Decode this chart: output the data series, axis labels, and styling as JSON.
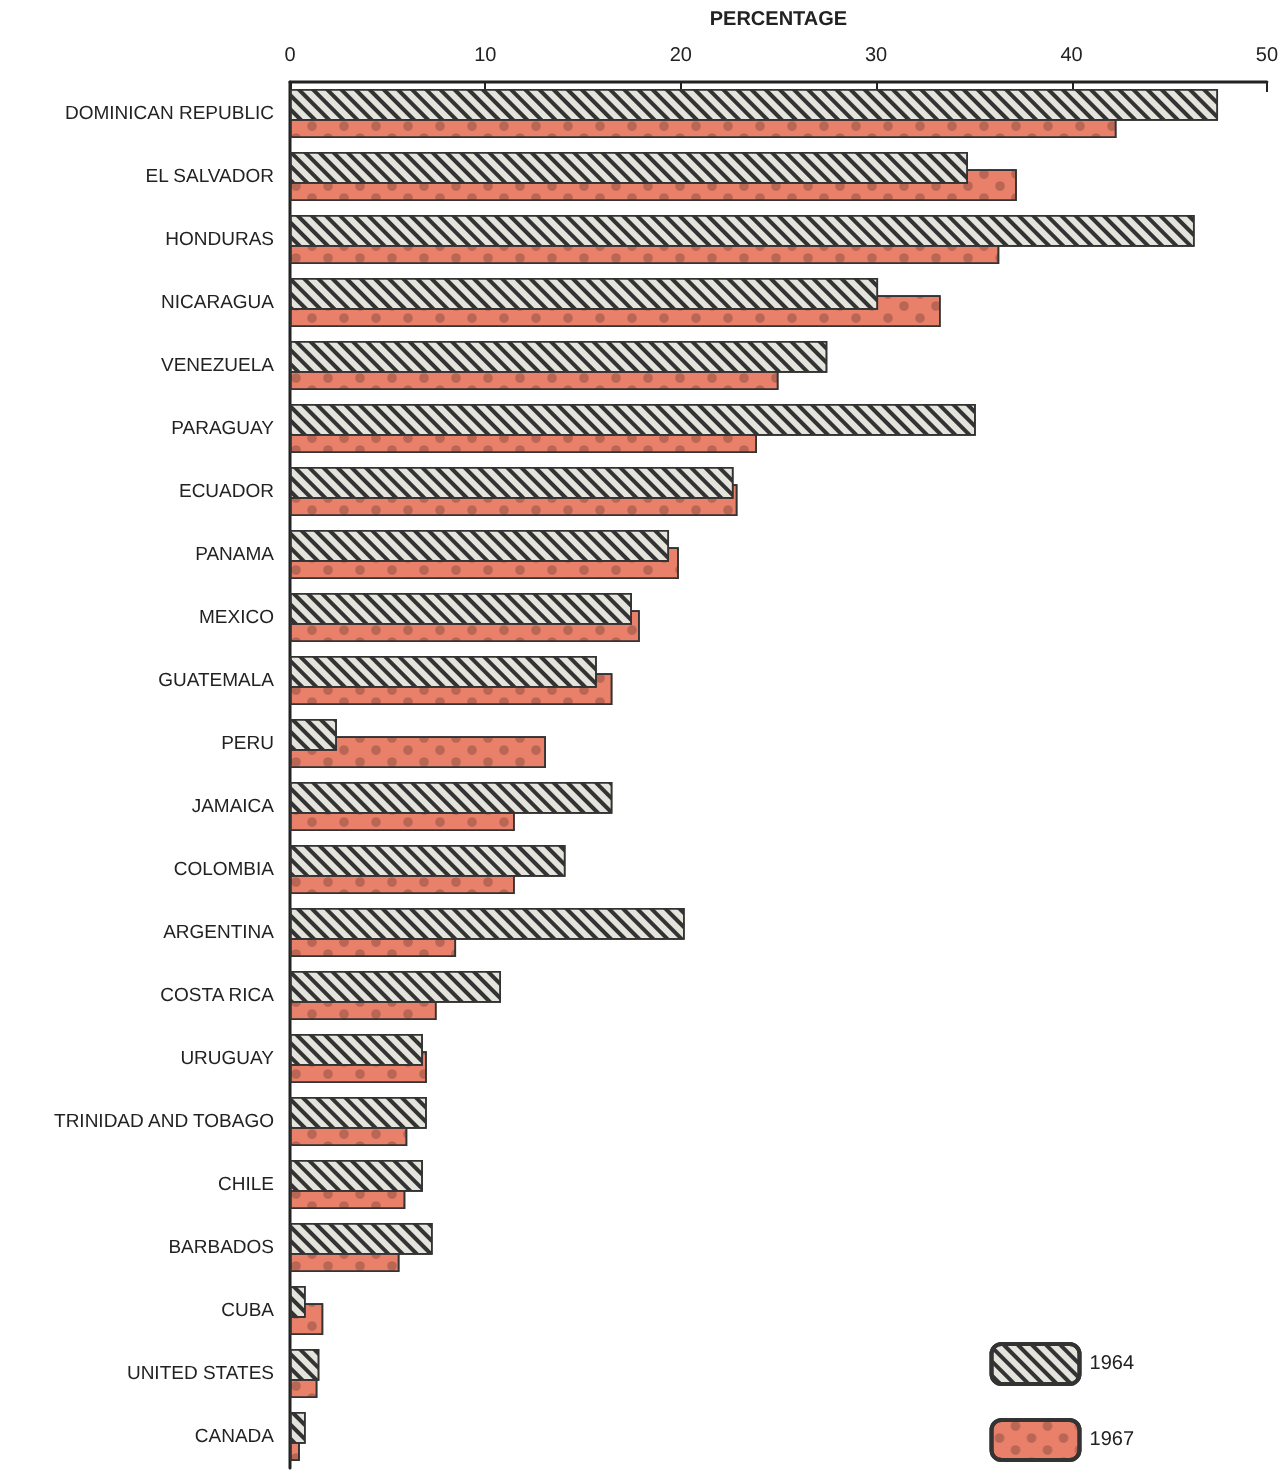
{
  "chart_data": {
    "type": "bar",
    "orientation": "horizontal",
    "xlabel": "PERCENTAGE",
    "categories": [
      "DOMINICAN REPUBLIC",
      "EL SALVADOR",
      "HONDURAS",
      "NICARAGUA",
      "VENEZUELA",
      "PARAGUAY",
      "ECUADOR",
      "PANAMA",
      "MEXICO",
      "GUATEMALA",
      "PERU",
      "JAMAICA",
      "COLOMBIA",
      "ARGENTINA",
      "COSTA RICA",
      "URUGUAY",
      "TRINIDAD AND TOBAGO",
      "CHILE",
      "BARBADOS",
      "CUBA",
      "UNITED STATES",
      "CANADA"
    ],
    "series": [
      {
        "name": "1964",
        "color": "#e4e4dc",
        "values": [
          47.5,
          34.7,
          46.3,
          30.1,
          27.5,
          35.1,
          22.7,
          19.4,
          17.5,
          15.7,
          2.4,
          16.5,
          14.1,
          20.2,
          10.8,
          6.8,
          7.0,
          6.8,
          7.3,
          0.8,
          1.5,
          0.8
        ]
      },
      {
        "name": "1967",
        "color": "#e8806a",
        "values": [
          42.3,
          37.2,
          36.3,
          33.3,
          25.0,
          23.9,
          22.9,
          19.9,
          17.9,
          16.5,
          13.1,
          11.5,
          11.5,
          8.5,
          7.5,
          7.0,
          6.0,
          5.9,
          5.6,
          1.7,
          1.4,
          0.5
        ]
      }
    ],
    "xlim": [
      0,
      50
    ],
    "xticks": [
      0,
      10,
      20,
      30,
      40,
      50
    ],
    "grid": false,
    "legend": "bottom right"
  }
}
